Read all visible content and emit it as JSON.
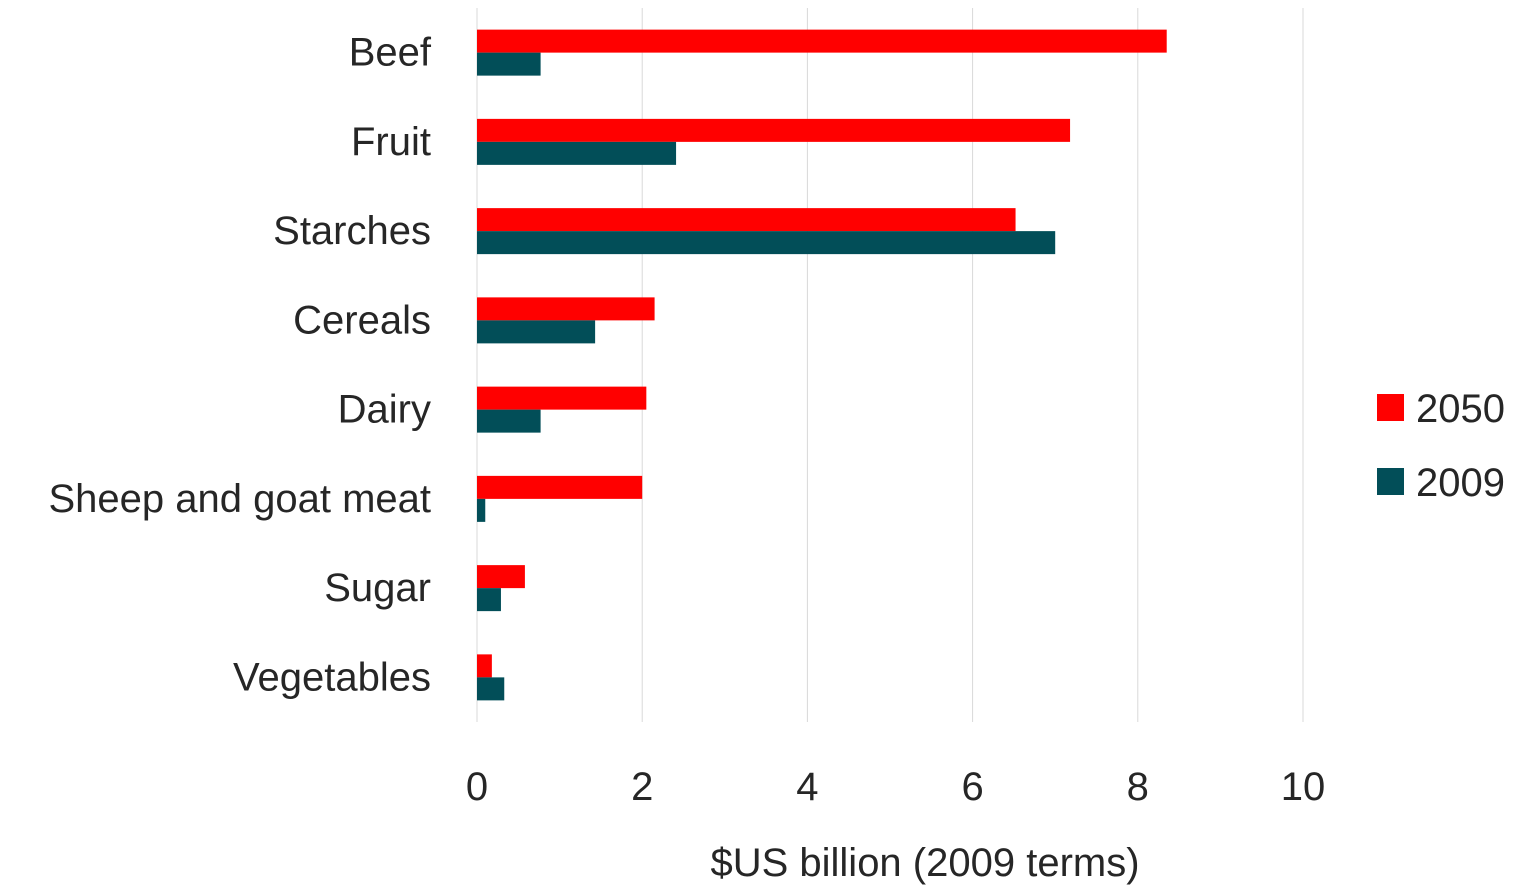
{
  "chart_data": {
    "type": "bar",
    "orientation": "horizontal",
    "categories": [
      "Beef",
      "Fruit",
      "Starches",
      "Cereals",
      "Dairy",
      "Sheep and goat meat",
      "Sugar",
      "Vegetables"
    ],
    "series": [
      {
        "name": "2050",
        "color": "#ff0000",
        "values": [
          8.35,
          7.18,
          6.52,
          2.15,
          2.05,
          2.0,
          0.58,
          0.18
        ]
      },
      {
        "name": "2009",
        "color": "#024e58",
        "values": [
          0.77,
          2.41,
          7.0,
          1.43,
          0.77,
          0.1,
          0.29,
          0.33
        ]
      }
    ],
    "xlabel": "$US billion (2009 terms)",
    "ylabel": "",
    "xlim": [
      0,
      10
    ],
    "xticks": [
      "0",
      "2",
      "4",
      "6",
      "8",
      "10"
    ],
    "grid": "vertical",
    "legend_position": "right"
  }
}
